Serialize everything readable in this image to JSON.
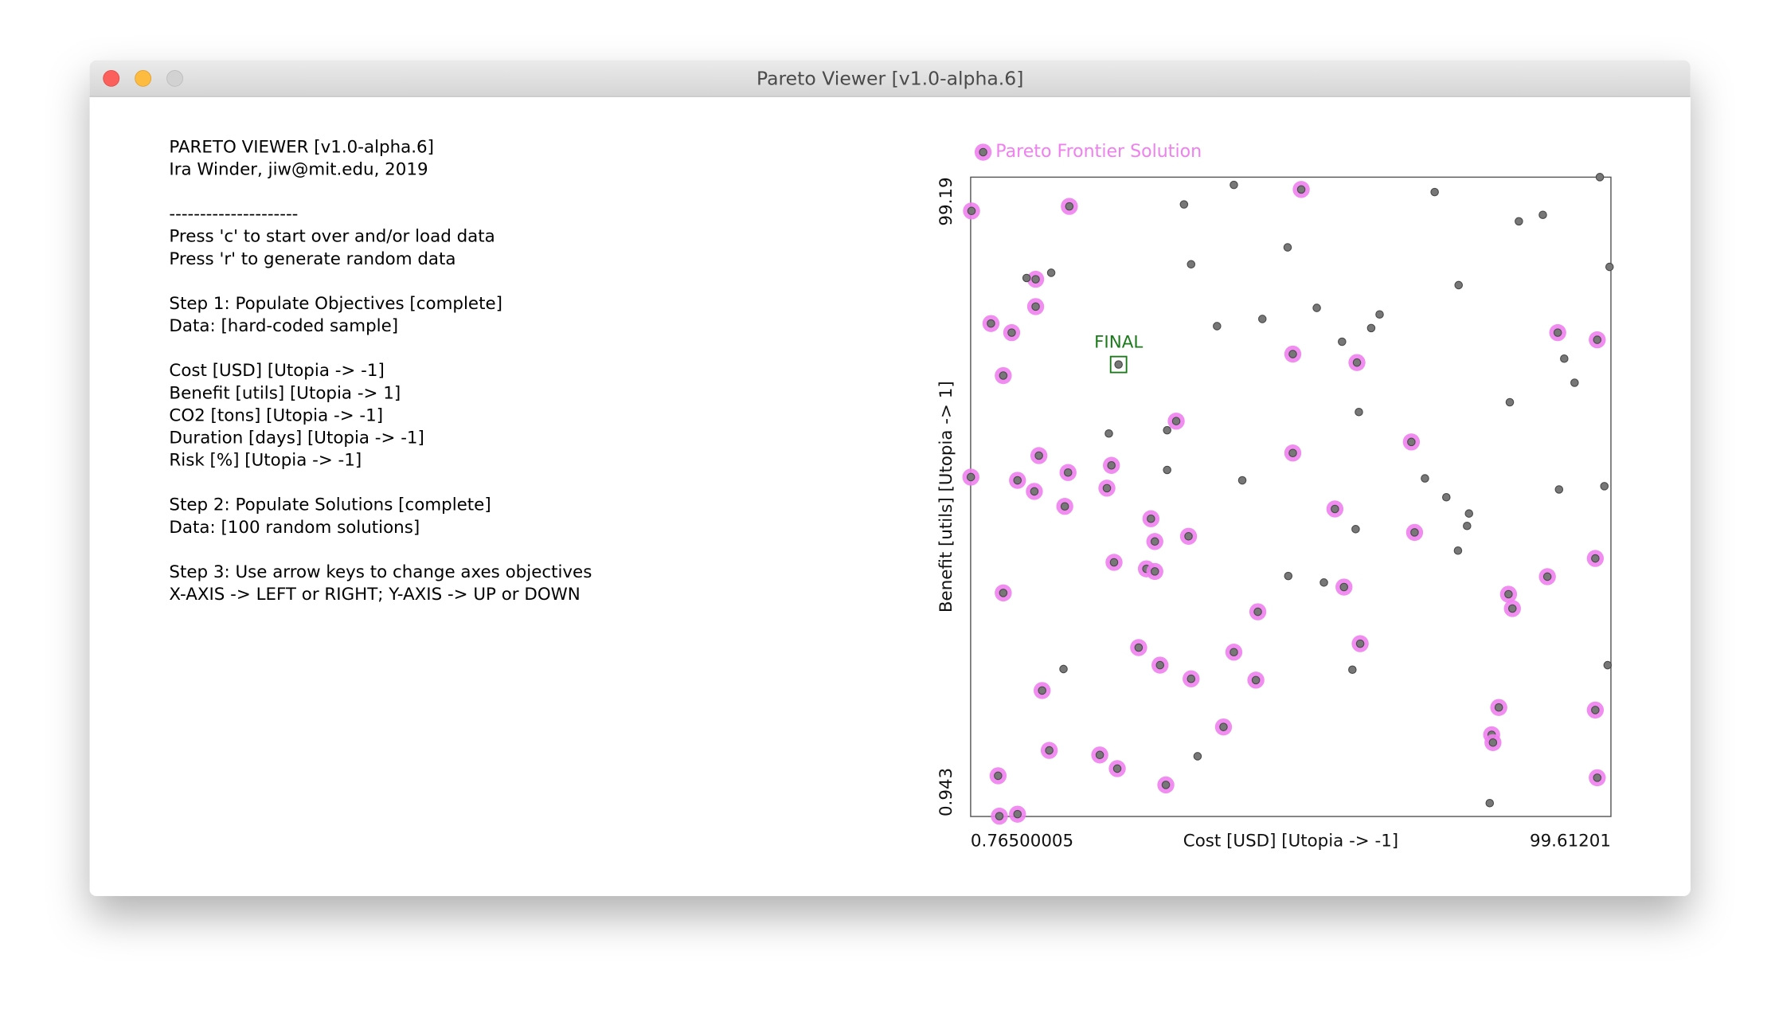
{
  "window": {
    "title": "Pareto Viewer [v1.0-alpha.6]"
  },
  "panel": {
    "blocks": [
      [
        "PARETO VIEWER [v1.0-alpha.6]",
        "Ira Winder, jiw@mit.edu, 2019"
      ],
      [
        "---------------------",
        "Press 'c' to start over and/or load data",
        "Press 'r' to generate random data"
      ],
      [
        "Step 1: Populate Objectives [complete]",
        "Data: [hard-coded sample]"
      ],
      [
        "Cost [USD] [Utopia -> -1]",
        "Benefit [utils] [Utopia -> 1]",
        "CO2 [tons] [Utopia -> -1]",
        "Duration [days] [Utopia -> -1]",
        "Risk [%] [Utopia -> -1]"
      ],
      [
        "Step 2: Populate Solutions [complete]",
        "Data: [100 random solutions]"
      ],
      [
        "Step 3: Use arrow keys to change axes objectives",
        "X-AXIS -> LEFT or RIGHT; Y-AXIS -> UP or DOWN"
      ]
    ]
  },
  "chart_data": {
    "type": "scatter",
    "xlabel": "Cost [USD] [Utopia -> -1]",
    "ylabel": "Benefit [utils] [Utopia -> 1]",
    "xlim": [
      0.76500005,
      99.61201
    ],
    "ylim": [
      0.943,
      99.19
    ],
    "xticks": [
      0.76500005,
      99.61201
    ],
    "yticks": [
      0.943,
      99.19
    ],
    "series": [
      {
        "name": "Pareto Frontier Solution",
        "color": "#f080f0",
        "x": [
          0.9,
          16.0,
          51.8,
          10.8,
          10.8,
          3.9,
          7.1,
          5.8,
          91.4,
          97.5,
          50.5,
          60.4,
          32.5,
          68.8,
          11.3,
          50.5,
          0.8,
          8.0,
          15.8,
          22.5,
          10.6,
          21.8,
          15.3,
          57.0,
          28.6,
          34.4,
          29.2,
          69.3,
          22.9,
          27.9,
          29.2,
          97.2,
          89.8,
          5.8,
          58.4,
          83.8,
          84.4,
          45.1,
          26.7,
          41.4,
          60.9,
          30.0,
          34.8,
          44.8,
          11.8,
          82.3,
          97.2,
          39.8,
          81.2,
          81.4,
          12.9,
          20.7,
          23.4,
          5.0,
          30.9,
          97.5,
          5.2,
          8.0
        ],
        "values": [
          94.0,
          94.7,
          97.3,
          83.5,
          79.3,
          76.7,
          75.3,
          68.7,
          75.3,
          74.2,
          72.0,
          70.7,
          61.7,
          58.5,
          56.4,
          56.8,
          53.1,
          52.6,
          53.8,
          54.9,
          50.9,
          51.4,
          48.6,
          48.2,
          46.7,
          44.0,
          43.2,
          44.6,
          40.0,
          39.0,
          38.6,
          40.6,
          37.8,
          35.3,
          36.2,
          35.1,
          32.9,
          32.4,
          26.9,
          26.2,
          27.5,
          24.2,
          22.1,
          21.9,
          20.3,
          17.7,
          17.3,
          14.7,
          13.5,
          12.3,
          11.1,
          10.4,
          8.3,
          7.2,
          5.8,
          6.9,
          1.0,
          1.3
        ]
      },
      {
        "color": "#777777",
        "x": [
          97.9,
          41.4,
          33.7,
          72.4,
          85.4,
          89.1,
          49.7,
          34.8,
          99.4,
          13.2,
          9.4,
          76.1,
          54.2,
          63.9,
          45.8,
          38.8,
          62.6,
          58.1,
          92.4,
          94.0,
          84.0,
          60.7,
          22.1,
          31.1,
          31.1,
          42.7,
          70.9,
          98.6,
          91.6,
          74.2,
          77.7,
          77.4,
          60.2,
          76.0,
          49.8,
          55.3,
          15.1,
          59.7,
          99.1,
          35.8,
          80.9
        ],
        "values": [
          99.2,
          98.0,
          95.0,
          96.9,
          92.4,
          93.4,
          88.4,
          85.8,
          85.4,
          84.5,
          83.7,
          82.6,
          79.1,
          78.1,
          77.4,
          76.3,
          76.0,
          73.9,
          71.3,
          67.6,
          64.6,
          63.1,
          59.8,
          60.3,
          54.2,
          52.6,
          52.9,
          51.7,
          51.2,
          50.0,
          47.5,
          45.6,
          45.1,
          41.8,
          37.9,
          36.9,
          23.6,
          23.5,
          24.2,
          10.2,
          3.0
        ]
      }
    ],
    "annotations": [
      {
        "text": "FINAL",
        "x": 23.6,
        "y": 70.4,
        "color": "#1a7a1a"
      }
    ]
  }
}
